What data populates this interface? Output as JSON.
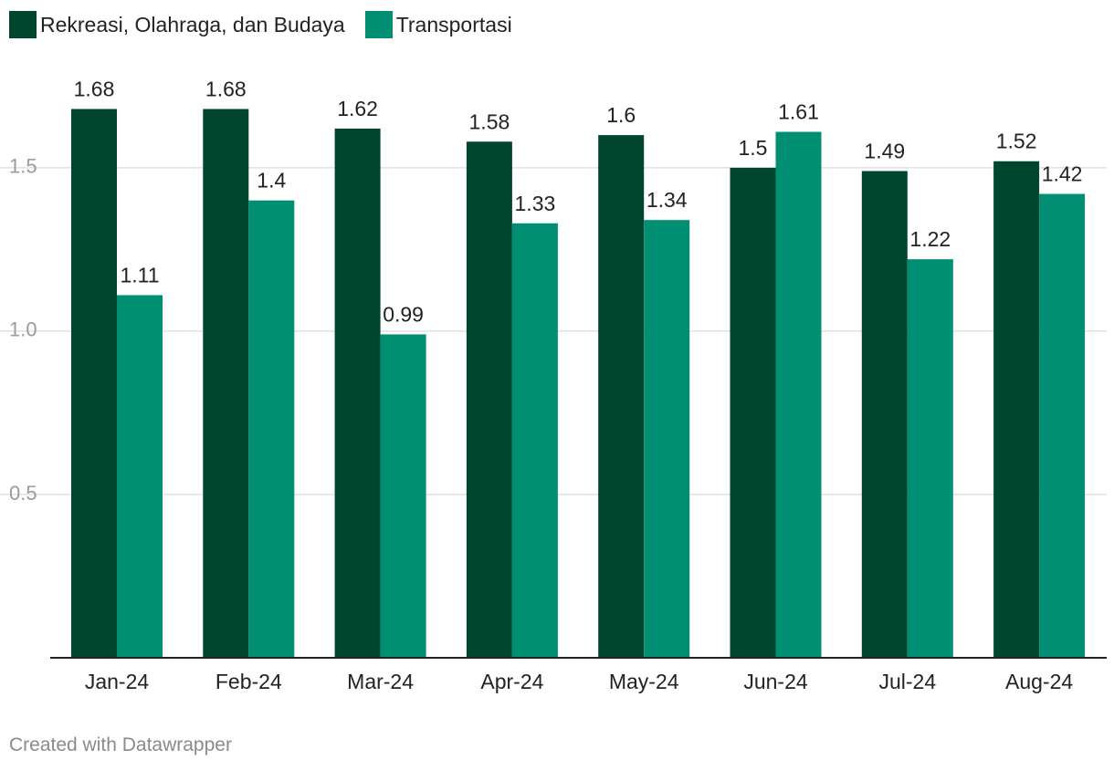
{
  "chart_data": {
    "type": "bar",
    "categories": [
      "Jan-24",
      "Feb-24",
      "Mar-24",
      "Apr-24",
      "May-24",
      "Jun-24",
      "Jul-24",
      "Aug-24"
    ],
    "series": [
      {
        "name": "Rekreasi, Olahraga, dan Budaya",
        "color": "#00462f",
        "values": [
          1.68,
          1.68,
          1.62,
          1.58,
          1.6,
          1.5,
          1.49,
          1.52
        ],
        "labels": [
          "1.68",
          "1.68",
          "1.62",
          "1.58",
          "1.6",
          "1.5",
          "1.49",
          "1.52"
        ]
      },
      {
        "name": "Transportasi",
        "color": "#008f72",
        "values": [
          1.11,
          1.4,
          0.99,
          1.33,
          1.34,
          1.61,
          1.22,
          1.42
        ],
        "labels": [
          "1.11",
          "1.4",
          "0.99",
          "1.33",
          "1.34",
          "1.61",
          "1.22",
          "1.42"
        ]
      }
    ],
    "yticks": [
      0.5,
      1.0,
      1.5
    ],
    "ytick_labels": [
      "0.5",
      "1.0",
      "1.5"
    ],
    "ylim": [
      0,
      1.86
    ],
    "grid": true,
    "legend": "top-left",
    "title": "",
    "xlabel": "",
    "ylabel": ""
  },
  "footer": {
    "credit": "Created with Datawrapper"
  }
}
